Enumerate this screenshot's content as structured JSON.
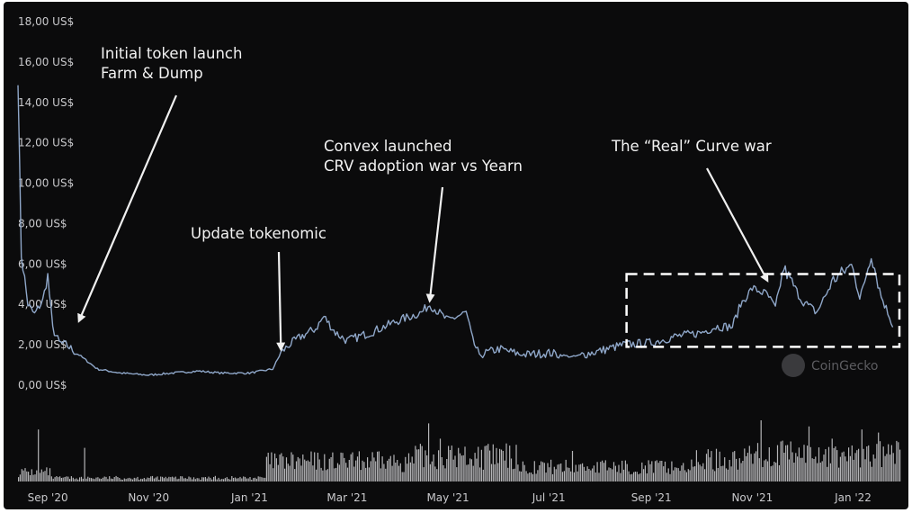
{
  "chart_data": {
    "type": "line",
    "series": [
      {
        "x": [
          "2020-08-14",
          "2020-08-16",
          "2020-08-20",
          "2020-08-24",
          "2020-08-29",
          "2020-09-01",
          "2020-09-04",
          "2020-09-08",
          "2020-09-12",
          "2020-09-20",
          "2020-10-01",
          "2020-10-15",
          "2020-11-01",
          "2020-11-15",
          "2020-12-01",
          "2020-12-15",
          "2021-01-01",
          "2021-01-15",
          "2021-01-20",
          "2021-01-25",
          "2021-02-01",
          "2021-02-10",
          "2021-02-15",
          "2021-02-22",
          "2021-03-01",
          "2021-03-15",
          "2021-04-01",
          "2021-04-15",
          "2021-04-20",
          "2021-05-01",
          "2021-05-12",
          "2021-05-16",
          "2021-05-20",
          "2021-06-01",
          "2021-06-15",
          "2021-07-01",
          "2021-07-15",
          "2021-08-01",
          "2021-08-15",
          "2021-09-01",
          "2021-09-15",
          "2021-10-01",
          "2021-10-10",
          "2021-10-20",
          "2021-10-25",
          "2021-11-01",
          "2021-11-10",
          "2021-11-15",
          "2021-11-20",
          "2021-12-01",
          "2021-12-10",
          "2021-12-20",
          "2022-01-01",
          "2022-01-05",
          "2022-01-12",
          "2022-01-18",
          "2022-01-25"
        ],
        "values": [
          15.2,
          6.5,
          4.0,
          3.5,
          4.2,
          5.4,
          2.8,
          2.1,
          2.0,
          1.5,
          0.8,
          0.6,
          0.5,
          0.6,
          0.7,
          0.6,
          0.6,
          0.8,
          1.6,
          2.0,
          2.4,
          2.8,
          3.4,
          2.6,
          2.2,
          2.6,
          3.2,
          3.6,
          4.0,
          3.2,
          3.6,
          2.2,
          1.5,
          1.8,
          1.5,
          1.6,
          1.4,
          1.7,
          2.0,
          2.1,
          2.4,
          2.6,
          2.9,
          2.9,
          4.0,
          4.8,
          4.5,
          3.8,
          5.8,
          4.2,
          3.6,
          5.2,
          6.0,
          4.2,
          6.5,
          4.4,
          3.0
        ]
      }
    ],
    "y_ticks": [
      "0,00 US$",
      "2,00 US$",
      "4,00 US$",
      "6,00 US$",
      "8,00 US$",
      "10,00 US$",
      "12,00 US$",
      "14,00 US$",
      "16,00 US$",
      "18,00 US$"
    ],
    "ylim": [
      0,
      18
    ],
    "x_ticks": [
      {
        "label": "Sep '20",
        "date": "2020-09-01"
      },
      {
        "label": "Nov '20",
        "date": "2020-11-01"
      },
      {
        "label": "Jan '21",
        "date": "2021-01-01"
      },
      {
        "label": "Mar '21",
        "date": "2021-03-01"
      },
      {
        "label": "May '21",
        "date": "2021-05-01"
      },
      {
        "label": "Jul '21",
        "date": "2021-07-01"
      },
      {
        "label": "Sep '21",
        "date": "2021-09-01"
      },
      {
        "label": "Nov '21",
        "date": "2021-11-01"
      },
      {
        "label": "Jan '22",
        "date": "2022-01-01"
      }
    ],
    "xlim": [
      "2020-08-14",
      "2022-01-29"
    ],
    "annotations": [
      {
        "lines": [
          "Initial token launch",
          "Farm & Dump"
        ],
        "target_date": "2020-09-20",
        "target_value": 3.2
      },
      {
        "lines": [
          "Update tokenomic"
        ],
        "target_date": "2021-01-20",
        "target_value": 1.8
      },
      {
        "lines": [
          "Convex launched",
          "CRV adoption war vs Yearn"
        ],
        "target_date": "2021-04-20",
        "target_value": 4.2
      },
      {
        "lines": [
          "The “Real” Curve war"
        ],
        "target_date": "2021-11-10",
        "target_value": 5.2
      }
    ],
    "highlight_box": {
      "x_start": "2021-08-17",
      "x_end": "2022-01-29",
      "y_low": 1.9,
      "y_high": 5.5
    },
    "volume": "shown as bars along bottom",
    "watermark": "CoinGecko"
  },
  "colors": {
    "background": "#0b0b0c",
    "line": "#8fa7c9",
    "volume": "#d2d2d6",
    "arrow": "#f0f0f0",
    "box": "#ffffff"
  }
}
